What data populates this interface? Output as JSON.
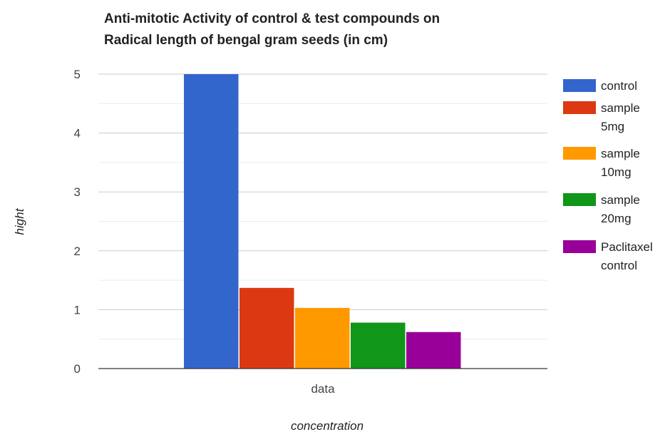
{
  "chart_data": {
    "type": "bar",
    "title_lines": [
      "Anti-mitotic Activity of control & test compounds on",
      "Radical length  of bengal gram seeds (in cm)"
    ],
    "xlabel": "concentration",
    "ylabel": "hight",
    "categories": [
      "data"
    ],
    "y_ticks": [
      "0",
      "1",
      "2",
      "3",
      "4",
      "5"
    ],
    "ylim": [
      0,
      5
    ],
    "grid": true,
    "legend_position": "right",
    "series": [
      {
        "name": "control",
        "legend_lines": [
          "control"
        ],
        "color": "#3366cc",
        "values": [
          5.0
        ]
      },
      {
        "name": "sample 5mg",
        "legend_lines": [
          "sample",
          "5mg"
        ],
        "color": "#dc3912",
        "values": [
          1.37
        ]
      },
      {
        "name": "sample 10mg",
        "legend_lines": [
          "sample",
          "10mg"
        ],
        "color": "#ff9900",
        "values": [
          1.03
        ]
      },
      {
        "name": "sample 20mg",
        "legend_lines": [
          "sample",
          "20mg"
        ],
        "color": "#109618",
        "values": [
          0.78
        ]
      },
      {
        "name": "Paclitaxel control",
        "legend_lines": [
          "Paclitaxel",
          "control"
        ],
        "color": "#990099",
        "values": [
          0.62
        ]
      }
    ]
  }
}
